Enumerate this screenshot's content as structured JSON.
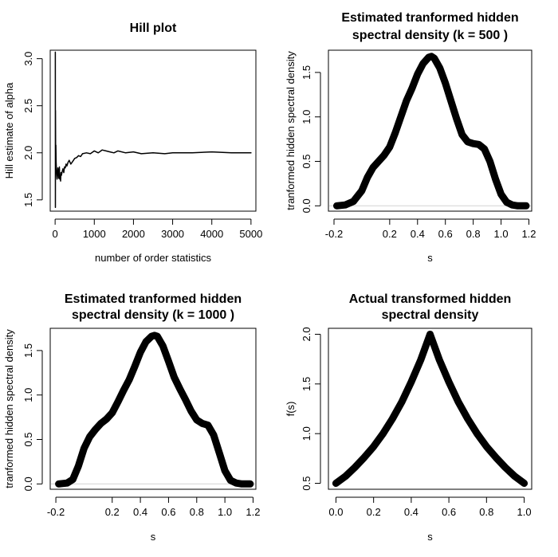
{
  "chart_data": [
    {
      "type": "line",
      "title": [
        "Hill plot"
      ],
      "xlabel": "number of order statistics",
      "ylabel": "Hill estimate of alpha",
      "xlim": [
        -125,
        5125
      ],
      "ylim": [
        1.38,
        3.09
      ],
      "x_ticks": [
        0,
        1000,
        2000,
        3000,
        4000,
        5000
      ],
      "x_tick_labels": [
        "0",
        "1000",
        "2000",
        "3000",
        "4000",
        "5000"
      ],
      "y_ticks": [
        1.5,
        2.0,
        2.5,
        3.0
      ],
      "y_tick_labels": [
        "1.5",
        "2.0",
        "2.5",
        "3.0"
      ],
      "line_width": 1.5,
      "series": [
        {
          "name": "Hill estimate",
          "x": [
            5,
            8,
            10,
            15,
            20,
            25,
            30,
            40,
            50,
            60,
            70,
            80,
            90,
            100,
            110,
            120,
            130,
            140,
            150,
            160,
            180,
            200,
            220,
            240,
            260,
            280,
            300,
            330,
            360,
            400,
            450,
            500,
            550,
            600,
            650,
            700,
            800,
            900,
            1000,
            1100,
            1200,
            1300,
            1400,
            1500,
            1600,
            1800,
            2000,
            2200,
            2500,
            2800,
            3000,
            3500,
            4000,
            4500,
            5000
          ],
          "y": [
            3.07,
            1.42,
            2.45,
            1.8,
            2.08,
            1.9,
            1.86,
            1.77,
            1.72,
            1.78,
            1.84,
            1.82,
            1.73,
            1.74,
            1.85,
            1.72,
            1.76,
            1.7,
            1.79,
            1.76,
            1.8,
            1.83,
            1.79,
            1.85,
            1.84,
            1.88,
            1.86,
            1.9,
            1.92,
            1.88,
            1.91,
            1.94,
            1.95,
            1.97,
            1.96,
            1.99,
            2.0,
            1.99,
            2.02,
            2.0,
            2.03,
            2.02,
            2.01,
            2.0,
            2.02,
            2.0,
            2.01,
            1.99,
            2.0,
            1.99,
            2.0,
            2.0,
            2.01,
            2.0,
            2.0
          ]
        }
      ]
    },
    {
      "type": "line",
      "title": [
        "Estimated tranformed hidden",
        "spectral density (k =  500 )"
      ],
      "xlabel": "s",
      "ylabel": "tranformed hidden spectral density",
      "xlim": [
        -0.24,
        1.22
      ],
      "ylim": [
        -0.06,
        1.75
      ],
      "x_ticks": [
        -0.2,
        0.2,
        0.4,
        0.6,
        0.8,
        1.0,
        1.2
      ],
      "x_tick_labels": [
        "-0.2",
        "0.2",
        "0.4",
        "0.6",
        "0.8",
        "1.0",
        "1.2"
      ],
      "y_ticks": [
        0.0,
        0.5,
        1.0,
        1.5
      ],
      "y_tick_labels": [
        "0.0",
        "0.5",
        "1.0",
        "1.5"
      ],
      "baseline": 0,
      "line_width": 9,
      "series": [
        {
          "name": "density",
          "x": [
            -0.18,
            -0.12,
            -0.06,
            0.0,
            0.04,
            0.08,
            0.12,
            0.16,
            0.2,
            0.24,
            0.28,
            0.32,
            0.36,
            0.4,
            0.44,
            0.48,
            0.5,
            0.52,
            0.56,
            0.6,
            0.64,
            0.68,
            0.72,
            0.76,
            0.8,
            0.84,
            0.88,
            0.92,
            0.96,
            1.0,
            1.04,
            1.08,
            1.12,
            1.18
          ],
          "y": [
            0.0,
            0.01,
            0.05,
            0.17,
            0.32,
            0.43,
            0.5,
            0.57,
            0.66,
            0.82,
            1.0,
            1.18,
            1.32,
            1.48,
            1.6,
            1.67,
            1.68,
            1.66,
            1.55,
            1.38,
            1.18,
            0.98,
            0.8,
            0.72,
            0.7,
            0.69,
            0.64,
            0.5,
            0.3,
            0.13,
            0.04,
            0.01,
            0.0,
            0.0
          ]
        }
      ]
    },
    {
      "type": "line",
      "title": [
        "Estimated tranformed hidden",
        "spectral density (k =  1000 )"
      ],
      "xlabel": "s",
      "ylabel": "tranformed hidden spectral density",
      "xlim": [
        -0.24,
        1.22
      ],
      "ylim": [
        -0.06,
        1.75
      ],
      "x_ticks": [
        -0.2,
        0.2,
        0.4,
        0.6,
        0.8,
        1.0,
        1.2
      ],
      "x_tick_labels": [
        "-0.2",
        "0.2",
        "0.4",
        "0.6",
        "0.8",
        "1.0",
        "1.2"
      ],
      "y_ticks": [
        0.0,
        0.5,
        1.0,
        1.5
      ],
      "y_tick_labels": [
        "0.0",
        "0.5",
        "1.0",
        "1.5"
      ],
      "baseline": 0,
      "line_width": 9,
      "series": [
        {
          "name": "density",
          "x": [
            -0.18,
            -0.12,
            -0.08,
            -0.04,
            0.0,
            0.04,
            0.08,
            0.12,
            0.16,
            0.2,
            0.24,
            0.28,
            0.32,
            0.36,
            0.4,
            0.44,
            0.48,
            0.5,
            0.52,
            0.56,
            0.6,
            0.64,
            0.68,
            0.72,
            0.76,
            0.8,
            0.84,
            0.88,
            0.92,
            0.96,
            1.0,
            1.04,
            1.08,
            1.12,
            1.18
          ],
          "y": [
            0.0,
            0.01,
            0.05,
            0.2,
            0.4,
            0.53,
            0.61,
            0.68,
            0.73,
            0.8,
            0.92,
            1.05,
            1.17,
            1.32,
            1.48,
            1.6,
            1.66,
            1.67,
            1.66,
            1.55,
            1.38,
            1.2,
            1.07,
            0.95,
            0.82,
            0.72,
            0.68,
            0.66,
            0.55,
            0.35,
            0.15,
            0.04,
            0.01,
            0.0,
            0.0
          ]
        }
      ]
    },
    {
      "type": "line",
      "title": [
        "Actual transformed hidden",
        "spectral density"
      ],
      "xlabel": "s",
      "ylabel": "f(s)",
      "xlim": [
        -0.04,
        1.04
      ],
      "ylim": [
        0.44,
        2.06
      ],
      "x_ticks": [
        0.0,
        0.2,
        0.4,
        0.6,
        0.8,
        1.0
      ],
      "x_tick_labels": [
        "0.0",
        "0.2",
        "0.4",
        "0.6",
        "0.8",
        "1.0"
      ],
      "y_ticks": [
        0.5,
        1.0,
        1.5,
        2.0
      ],
      "y_tick_labels": [
        "0.5",
        "1.0",
        "1.5",
        "2.0"
      ],
      "line_width": 9,
      "series": [
        {
          "name": "f(s)",
          "x": [
            0.0,
            0.05,
            0.1,
            0.15,
            0.2,
            0.25,
            0.3,
            0.35,
            0.4,
            0.45,
            0.5,
            0.55,
            0.6,
            0.65,
            0.7,
            0.75,
            0.8,
            0.85,
            0.9,
            0.95,
            1.0
          ],
          "y": [
            0.5,
            0.57,
            0.66,
            0.76,
            0.87,
            1.0,
            1.15,
            1.32,
            1.52,
            1.74,
            2.0,
            1.74,
            1.52,
            1.32,
            1.15,
            1.0,
            0.87,
            0.76,
            0.66,
            0.57,
            0.5
          ]
        }
      ]
    }
  ]
}
